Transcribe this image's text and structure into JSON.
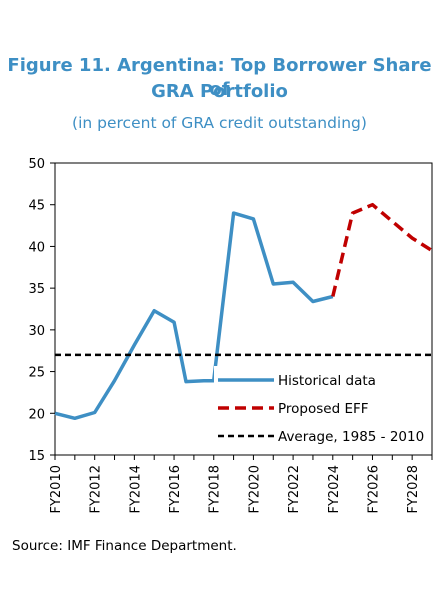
{
  "title_line1": "Figure 11. Argentina: Top Borrower Share of",
  "title_line2": "GRA Portfolio",
  "subtitle": "(in percent of GRA credit outstanding)",
  "source": "Source: IMF Finance Department.",
  "colors": {
    "historical": "#3e8fc4",
    "proposed": "#c00000",
    "average": "#000000"
  },
  "chart_data": {
    "type": "line",
    "ylim": [
      15,
      50
    ],
    "yticks": [
      15,
      20,
      25,
      30,
      35,
      40,
      45,
      50
    ],
    "xlim": [
      2010,
      2029
    ],
    "xtick_labels": [
      "FY2010",
      "FY2012",
      "FY2014",
      "FY2016",
      "FY2018",
      "FY2020",
      "FY2022",
      "FY2024",
      "FY2026",
      "FY2028"
    ],
    "xtick_years": [
      2010,
      2012,
      2014,
      2016,
      2018,
      2020,
      2022,
      2024,
      2026,
      2028
    ],
    "legend_position": "bottom-right",
    "series": [
      {
        "name": "Historical data",
        "style": "solid",
        "x": [
          2010,
          2011,
          2012,
          2013,
          2014,
          2015,
          2016,
          2016.6,
          2017.5,
          2018,
          2019,
          2020,
          2021,
          2022,
          2023,
          2024
        ],
        "y": [
          20.0,
          19.4,
          20.1,
          23.9,
          28.2,
          32.3,
          30.9,
          23.8,
          23.9,
          23.9,
          44.0,
          43.3,
          35.5,
          35.7,
          33.4,
          34.0
        ]
      },
      {
        "name": "Proposed EFF",
        "style": "dashed",
        "x": [
          2024,
          2025,
          2026,
          2027,
          2028,
          2029
        ],
        "y": [
          34.0,
          44.0,
          45.0,
          43.0,
          41.0,
          39.5
        ]
      },
      {
        "name": "Average, 1985 - 2010",
        "style": "dashed-flat",
        "x": [
          2010,
          2029
        ],
        "y": [
          27.0,
          27.0
        ]
      }
    ]
  }
}
